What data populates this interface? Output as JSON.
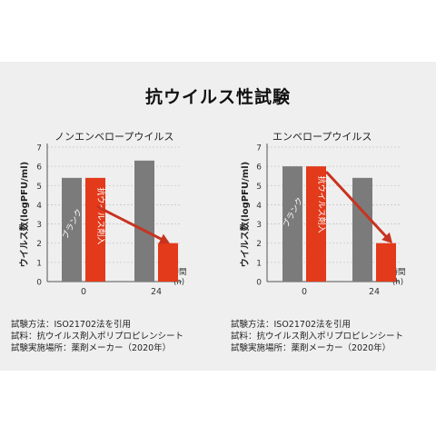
{
  "main_title": "抗ウイルス性試験",
  "colors": {
    "blank": "#7b7b7b",
    "treated": "#e23a1a",
    "arrow": "#c83320",
    "panel": "#efefef",
    "grid": "#c8c8c8"
  },
  "chart_data": [
    {
      "type": "bar",
      "title": "ノンエンベロープウイルス",
      "ylabel": "ウイルス数(logPFU/ml)",
      "xlabel": "時間(h)",
      "xlabel_lines": [
        "時間",
        "(h)"
      ],
      "ylim": [
        0,
        7
      ],
      "yticks": [
        "0",
        "1",
        "2",
        "3",
        "4",
        "5",
        "6",
        "7"
      ],
      "categories": [
        "0",
        "24"
      ],
      "series": [
        {
          "name": "ブランク",
          "values": [
            5.4,
            6.3
          ]
        },
        {
          "name": "抗ウイルス剤入",
          "values": [
            5.4,
            2.0
          ]
        }
      ],
      "bar_labels": [
        "ブランク",
        "抗ウイルス剤入"
      ],
      "grid": true
    },
    {
      "type": "bar",
      "title": "エンベロープウイルス",
      "ylabel": "ウイルス数(logPFU/ml)",
      "xlabel": "時間(h)",
      "xlabel_lines": [
        "時間",
        "(h)"
      ],
      "ylim": [
        0,
        7
      ],
      "yticks": [
        "0",
        "1",
        "2",
        "3",
        "4",
        "5",
        "6",
        "7"
      ],
      "categories": [
        "0",
        "24"
      ],
      "series": [
        {
          "name": "ブランク",
          "values": [
            6.0,
            5.4
          ]
        },
        {
          "name": "抗ウイルス剤入",
          "values": [
            6.0,
            2.0
          ]
        }
      ],
      "bar_labels": [
        "ブランク",
        "抗ウイルス剤入"
      ],
      "grid": true
    }
  ],
  "notes": [
    [
      "試験方法：ISO21702法を引用",
      "試料：抗ウイルス剤入ポリプロピレンシート",
      "試験実施場所：薬剤メーカー（2020年）"
    ],
    [
      "試験方法：ISO21702法を引用",
      "試料：抗ウイルス剤入ポリプロピレンシート",
      "試験実施場所：薬剤メーカー（2020年）"
    ]
  ]
}
